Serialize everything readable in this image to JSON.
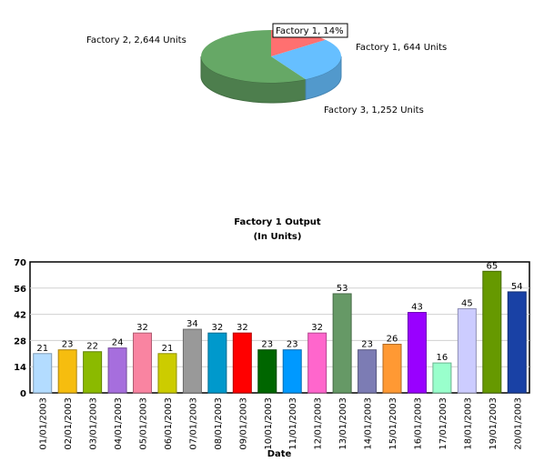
{
  "chart_data": [
    {
      "type": "pie",
      "slices": [
        {
          "name": "Factory 1",
          "value": 644,
          "label": "Factory 1, 644 Units",
          "color": "#ff7070"
        },
        {
          "name": "Factory 2",
          "value": 2644,
          "label": "Factory 2, 2,644 Units",
          "color": "#66a866"
        },
        {
          "name": "Factory 3",
          "value": 1252,
          "label": "Factory 3, 1,252 Units",
          "color": "#66bfff"
        }
      ],
      "tooltip": "Factory 1, 14%"
    },
    {
      "type": "bar",
      "title": "Factory 1 Output",
      "subtitle": "(In Units)",
      "xlabel": "Date",
      "ylabel": "",
      "ylim": [
        0,
        70
      ],
      "yticks": [
        0,
        14,
        28,
        42,
        56,
        70
      ],
      "grid": true,
      "categories": [
        "01/01/2003",
        "02/01/2003",
        "03/01/2003",
        "04/01/2003",
        "05/01/2003",
        "06/01/2003",
        "07/01/2003",
        "08/01/2003",
        "09/01/2003",
        "10/01/2003",
        "11/01/2003",
        "12/01/2003",
        "13/01/2003",
        "14/01/2003",
        "15/01/2003",
        "16/01/2003",
        "17/01/2003",
        "18/01/2003",
        "19/01/2003",
        "20/01/2003"
      ],
      "values": [
        21,
        23,
        22,
        24,
        32,
        21,
        34,
        32,
        32,
        23,
        23,
        32,
        53,
        23,
        26,
        43,
        16,
        45,
        65,
        54
      ],
      "colors": [
        "#b3dcff",
        "#f6bd0f",
        "#8bba00",
        "#a66edd",
        "#f984a1",
        "#cccc00",
        "#999999",
        "#0099cc",
        "#ff0000",
        "#006600",
        "#0099ff",
        "#ff66cc",
        "#669966",
        "#7c7cb4",
        "#ff9933",
        "#9900ff",
        "#99ffcc",
        "#ccccff",
        "#669900",
        "#1941a5"
      ]
    }
  ]
}
